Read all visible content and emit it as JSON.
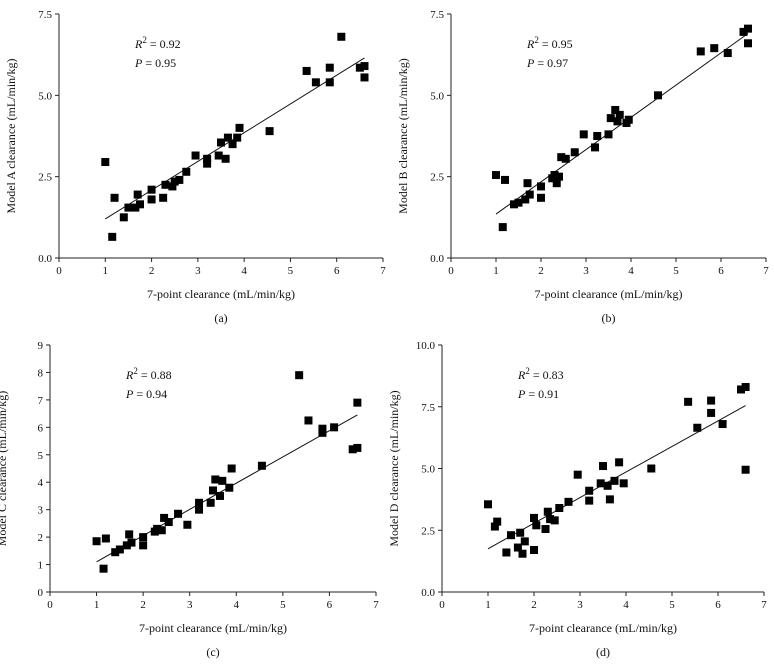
{
  "chart_data": [
    {
      "type": "scatter",
      "panel_label": "(a)",
      "xlabel": "7-point clearance (mL/min/kg)",
      "ylabel": "Model A clearance (mL/min/kg)",
      "xlim": [
        0,
        7
      ],
      "ylim": [
        0,
        7.5
      ],
      "x_ticks": [
        "0",
        "1",
        "2",
        "3",
        "4",
        "5",
        "6",
        "7"
      ],
      "y_ticks": [
        "0.0",
        "2.5",
        "5.0",
        "7.5"
      ],
      "y_tick_values": [
        0,
        2.5,
        5,
        7.5
      ],
      "annotations": [
        {
          "var": "R",
          "sup": "2",
          "text": " = 0.92"
        },
        {
          "var": "P",
          "sup": "",
          "text": " = 0.95"
        }
      ],
      "trendline": [
        [
          1.0,
          1.2
        ],
        [
          6.6,
          6.15
        ]
      ],
      "points": [
        [
          1.0,
          2.95
        ],
        [
          1.15,
          0.65
        ],
        [
          1.2,
          1.85
        ],
        [
          1.4,
          1.25
        ],
        [
          1.5,
          1.55
        ],
        [
          1.65,
          1.55
        ],
        [
          1.7,
          1.95
        ],
        [
          1.75,
          1.65
        ],
        [
          2.0,
          1.8
        ],
        [
          2.0,
          2.1
        ],
        [
          2.25,
          1.85
        ],
        [
          2.3,
          2.25
        ],
        [
          2.45,
          2.2
        ],
        [
          2.5,
          2.35
        ],
        [
          2.6,
          2.4
        ],
        [
          2.75,
          2.65
        ],
        [
          2.95,
          3.15
        ],
        [
          3.2,
          2.9
        ],
        [
          3.2,
          3.05
        ],
        [
          3.45,
          3.15
        ],
        [
          3.5,
          3.55
        ],
        [
          3.6,
          3.05
        ],
        [
          3.65,
          3.7
        ],
        [
          3.75,
          3.5
        ],
        [
          3.85,
          3.7
        ],
        [
          3.9,
          4.0
        ],
        [
          4.55,
          3.9
        ],
        [
          5.35,
          5.75
        ],
        [
          5.55,
          5.4
        ],
        [
          5.85,
          5.4
        ],
        [
          5.85,
          5.85
        ],
        [
          6.1,
          6.8
        ],
        [
          6.5,
          5.85
        ],
        [
          6.6,
          5.9
        ],
        [
          6.6,
          5.55
        ]
      ]
    },
    {
      "type": "scatter",
      "panel_label": "(b)",
      "xlabel": "7-point clearance (mL/min/kg)",
      "ylabel": "Model B clearance (mL/min/kg)",
      "xlim": [
        0,
        7
      ],
      "ylim": [
        0,
        7.5
      ],
      "x_ticks": [
        "0",
        "1",
        "2",
        "3",
        "4",
        "5",
        "6",
        "7"
      ],
      "y_ticks": [
        "0.0",
        "2.5",
        "5.0",
        "7.5"
      ],
      "y_tick_values": [
        0,
        2.5,
        5,
        7.5
      ],
      "annotations": [
        {
          "var": "R",
          "sup": "2",
          "text": " = 0.95"
        },
        {
          "var": "P",
          "sup": "",
          "text": " = 0.97"
        }
      ],
      "trendline": [
        [
          1.0,
          1.35
        ],
        [
          6.6,
          6.9
        ]
      ],
      "points": [
        [
          1.0,
          2.55
        ],
        [
          1.15,
          0.95
        ],
        [
          1.2,
          2.4
        ],
        [
          1.4,
          1.65
        ],
        [
          1.5,
          1.7
        ],
        [
          1.65,
          1.8
        ],
        [
          1.7,
          2.3
        ],
        [
          1.75,
          1.95
        ],
        [
          2.0,
          1.85
        ],
        [
          2.0,
          2.2
        ],
        [
          2.25,
          2.45
        ],
        [
          2.3,
          2.55
        ],
        [
          2.35,
          2.3
        ],
        [
          2.4,
          2.5
        ],
        [
          2.45,
          3.1
        ],
        [
          2.55,
          3.05
        ],
        [
          2.75,
          3.25
        ],
        [
          2.95,
          3.8
        ],
        [
          3.2,
          3.4
        ],
        [
          3.25,
          3.75
        ],
        [
          3.5,
          3.8
        ],
        [
          3.55,
          4.3
        ],
        [
          3.65,
          4.55
        ],
        [
          3.7,
          4.2
        ],
        [
          3.75,
          4.4
        ],
        [
          3.9,
          4.15
        ],
        [
          3.95,
          4.25
        ],
        [
          4.6,
          5.0
        ],
        [
          5.55,
          6.35
        ],
        [
          5.85,
          6.45
        ],
        [
          6.15,
          6.3
        ],
        [
          6.5,
          6.95
        ],
        [
          6.6,
          7.05
        ],
        [
          6.6,
          6.6
        ]
      ]
    },
    {
      "type": "scatter",
      "panel_label": "(c)",
      "xlabel": "7-point clearance (mL/min/kg)",
      "ylabel": "Model C clearance (mL/min/kg)",
      "xlim": [
        0,
        7
      ],
      "ylim": [
        0,
        9
      ],
      "x_ticks": [
        "0",
        "1",
        "2",
        "3",
        "4",
        "5",
        "6",
        "7"
      ],
      "y_ticks": [
        "0",
        "1",
        "2",
        "3",
        "4",
        "5",
        "6",
        "7",
        "8",
        "9"
      ],
      "y_tick_values": [
        0,
        1,
        2,
        3,
        4,
        5,
        6,
        7,
        8,
        9
      ],
      "annotations": [
        {
          "var": "R",
          "sup": "2",
          "text": " = 0.88"
        },
        {
          "var": "P",
          "sup": "",
          "text": " = 0.94"
        }
      ],
      "trendline": [
        [
          1.0,
          1.1
        ],
        [
          6.6,
          6.45
        ]
      ],
      "points": [
        [
          1.0,
          1.85
        ],
        [
          1.15,
          0.85
        ],
        [
          1.2,
          1.95
        ],
        [
          1.4,
          1.45
        ],
        [
          1.5,
          1.55
        ],
        [
          1.65,
          1.7
        ],
        [
          1.7,
          2.1
        ],
        [
          1.75,
          1.8
        ],
        [
          2.0,
          1.7
        ],
        [
          2.0,
          2.0
        ],
        [
          2.25,
          2.2
        ],
        [
          2.3,
          2.3
        ],
        [
          2.4,
          2.25
        ],
        [
          2.45,
          2.7
        ],
        [
          2.55,
          2.55
        ],
        [
          2.75,
          2.85
        ],
        [
          2.95,
          2.45
        ],
        [
          3.2,
          3.0
        ],
        [
          3.2,
          3.25
        ],
        [
          3.45,
          3.25
        ],
        [
          3.5,
          3.7
        ],
        [
          3.55,
          4.1
        ],
        [
          3.65,
          3.5
        ],
        [
          3.7,
          4.05
        ],
        [
          3.85,
          3.8
        ],
        [
          3.9,
          4.5
        ],
        [
          4.55,
          4.6
        ],
        [
          5.35,
          7.9
        ],
        [
          5.55,
          6.25
        ],
        [
          5.85,
          5.8
        ],
        [
          5.85,
          5.95
        ],
        [
          6.1,
          6.0
        ],
        [
          6.5,
          5.2
        ],
        [
          6.6,
          5.25
        ],
        [
          6.6,
          6.9
        ]
      ]
    },
    {
      "type": "scatter",
      "panel_label": "(d)",
      "xlabel": "7-point clearance (mL/min/kg)",
      "ylabel": "Model D clearance (mL/min/kg)",
      "xlim": [
        0,
        7
      ],
      "ylim": [
        0,
        10
      ],
      "x_ticks": [
        "0",
        "1",
        "2",
        "3",
        "4",
        "5",
        "6",
        "7"
      ],
      "y_ticks": [
        "0.0",
        "2.5",
        "5.0",
        "7.5",
        "10.0"
      ],
      "y_tick_values": [
        0,
        2.5,
        5,
        7.5,
        10
      ],
      "annotations": [
        {
          "var": "R",
          "sup": "2",
          "text": " = 0.83"
        },
        {
          "var": "P",
          "sup": "",
          "text": " = 0.91"
        }
      ],
      "trendline": [
        [
          1.0,
          1.75
        ],
        [
          6.6,
          7.55
        ]
      ],
      "points": [
        [
          1.0,
          3.55
        ],
        [
          1.15,
          2.65
        ],
        [
          1.2,
          2.85
        ],
        [
          1.4,
          1.6
        ],
        [
          1.5,
          2.3
        ],
        [
          1.65,
          1.8
        ],
        [
          1.7,
          2.4
        ],
        [
          1.75,
          1.55
        ],
        [
          1.8,
          2.05
        ],
        [
          2.0,
          1.7
        ],
        [
          2.0,
          3.0
        ],
        [
          2.05,
          2.7
        ],
        [
          2.25,
          2.55
        ],
        [
          2.3,
          3.25
        ],
        [
          2.35,
          2.95
        ],
        [
          2.45,
          2.9
        ],
        [
          2.55,
          3.4
        ],
        [
          2.75,
          3.65
        ],
        [
          2.95,
          4.75
        ],
        [
          3.2,
          3.7
        ],
        [
          3.2,
          4.1
        ],
        [
          3.45,
          4.4
        ],
        [
          3.5,
          5.1
        ],
        [
          3.6,
          4.3
        ],
        [
          3.65,
          3.75
        ],
        [
          3.75,
          4.5
        ],
        [
          3.85,
          5.25
        ],
        [
          3.95,
          4.4
        ],
        [
          4.55,
          5.0
        ],
        [
          5.35,
          7.7
        ],
        [
          5.55,
          6.65
        ],
        [
          5.85,
          7.75
        ],
        [
          5.85,
          7.25
        ],
        [
          6.1,
          6.8
        ],
        [
          6.5,
          8.2
        ],
        [
          6.6,
          8.3
        ],
        [
          6.6,
          4.95
        ]
      ]
    }
  ]
}
